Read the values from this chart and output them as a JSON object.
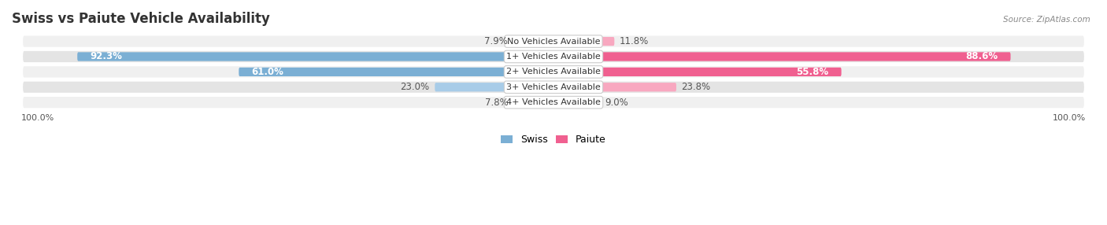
{
  "title": "Swiss vs Paiute Vehicle Availability",
  "source": "Source: ZipAtlas.com",
  "categories": [
    "No Vehicles Available",
    "1+ Vehicles Available",
    "2+ Vehicles Available",
    "3+ Vehicles Available",
    "4+ Vehicles Available"
  ],
  "swiss_values": [
    7.9,
    92.3,
    61.0,
    23.0,
    7.8
  ],
  "paiute_values": [
    11.8,
    88.6,
    55.8,
    23.8,
    9.0
  ],
  "swiss_color": "#7bafd4",
  "paiute_color": "#f06090",
  "swiss_color_light": "#a8cce8",
  "paiute_color_light": "#f8a8c0",
  "row_colors": [
    "#f0f0f0",
    "#e4e4e4",
    "#f0f0f0",
    "#e4e4e4",
    "#f0f0f0"
  ],
  "max_val": 100.0,
  "bar_height": 0.58,
  "title_fontsize": 12,
  "label_fontsize": 8.5,
  "category_fontsize": 8.0
}
